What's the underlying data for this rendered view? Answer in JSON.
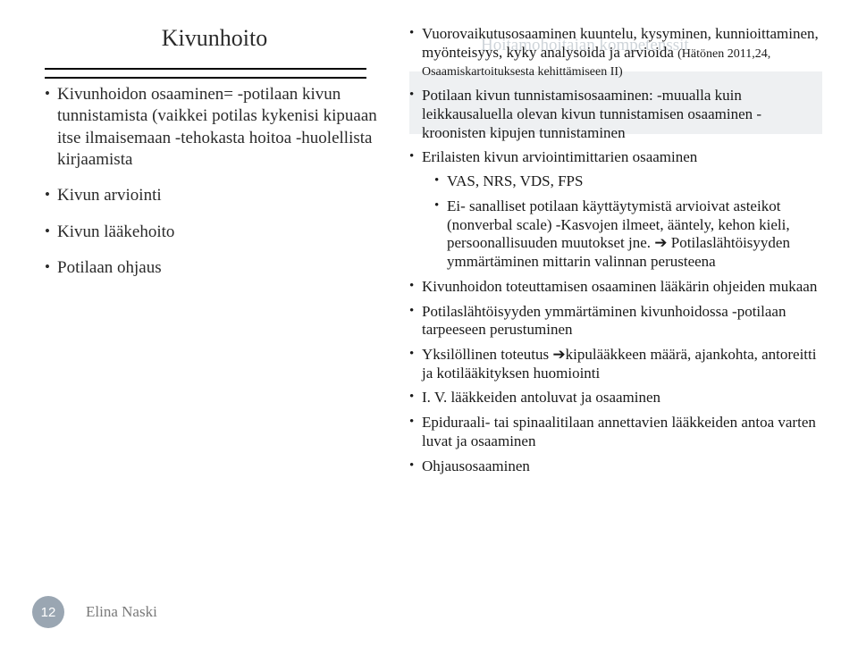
{
  "left": {
    "title": "Kivunhoito",
    "items": [
      "Kivunhoidon osaaminen=                           -potilaan kivun tunnistamista (vaikkei potilas kykenisi kipuaan itse ilmaisemaan                      -tehokasta hoitoa                                                       -huolellista kirjaamista",
      "Kivun arviointi",
      "Kivun lääkehoito",
      "Potilaan ohjaus"
    ]
  },
  "right": {
    "ghostTitle": "Hoitamohoitajan kompetenssit",
    "citation": "(Hätönen 2011,24, Osaamiskartoituksesta kehittämiseen II)",
    "items": [
      {
        "text": "Vuorovaikutusosaaminen                                   kuuntelu, kysyminen,  kunnioittaminen,               myönteisyys, kyky analysoida ja arvioida            ",
        "hasCitation": true
      },
      {
        "text": "Potilaan kivun tunnistamisosaaminen:                                 -muualla kuin leikkausaluella olevan kivun         tunnistamisen osaaminen                                                     -kroonisten kipujen tunnistaminen"
      },
      {
        "text": "Erilaisten kivun arviointimittarien osaaminen",
        "sub": [
          "VAS, NRS, VDS,  FPS",
          "Ei- sanalliset potilaan käyttäytymistä arvioivat asteikot (nonverbal scale)                                          -Kasvojen ilmeet, ääntely, kehon kieli,           persoonallisuuden muutokset jne.               ➔ Potilaslähtöisyyden  ymmärtäminen mittarin valinnan perusteena"
        ]
      },
      {
        "text": "Kivunhoidon toteuttamisen osaaminen lääkärin ohjeiden mukaan"
      },
      {
        "text": "Potilaslähtöisyyden ymmärtäminen kivunhoidossa              -potilaan tarpeeseen perustuminen"
      },
      {
        "text": "Yksilöllinen toteutus                             ➔kipulääkkeen määrä, ajankohta, antoreitti ja kotilääkityksen huomiointi"
      },
      {
        "text": "I. V. lääkkeiden antoluvat ja osaaminen"
      },
      {
        "text": "Epiduraali- tai  spinaalitilaan annettavien lääkkeiden antoa varten luvat ja osaaminen"
      },
      {
        "text": "Ohjausosaaminen"
      }
    ]
  },
  "footer": {
    "page": "12",
    "author": "Elina Naski"
  },
  "colors": {
    "bg": "#ffffff",
    "text": "#1a1a1a",
    "ghost": "rgba(80,100,120,0.28)",
    "band": "#eef0f2",
    "badge": "#9aa6b2",
    "author": "#7a7a7a",
    "rule": "#000000"
  }
}
